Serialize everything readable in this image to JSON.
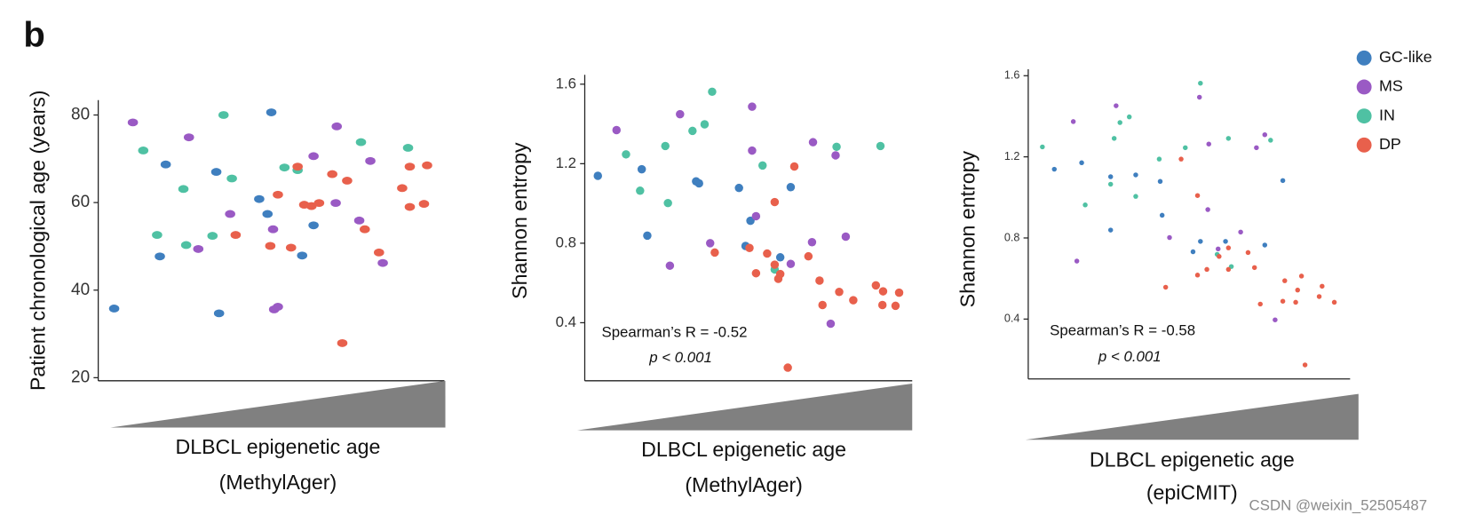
{
  "panel_label": "b",
  "watermark": "CSDN @weixin_52505487",
  "chart_data": [
    {
      "type": "scatter",
      "ylabel": "Patient chronological age (years)",
      "xlabel": [
        "DLBCL epigenetic age",
        "(MethylAger)"
      ],
      "xlim": [
        0,
        100
      ],
      "ylim": [
        19.3,
        83.4
      ],
      "yticks": [
        20,
        40,
        60,
        80
      ],
      "series": [
        {
          "name": "GC-like",
          "color": "#3f7fbf",
          "x": [
            4.6,
            17.8,
            19.5,
            34.1,
            34.9,
            46.5,
            48.9,
            50.0,
            58.9,
            62.2
          ],
          "values": [
            35.8,
            47.7,
            68.7,
            67.0,
            34.7,
            60.8,
            57.4,
            80.6,
            47.9,
            54.8
          ]
        },
        {
          "name": "MS",
          "color": "#9a5ac4",
          "x": [
            10.0,
            26.2,
            28.9,
            38.1,
            50.5,
            50.8,
            51.9,
            62.2,
            68.6,
            68.9,
            75.4,
            78.6,
            82.2
          ],
          "values": [
            78.3,
            74.9,
            49.4,
            57.4,
            53.9,
            35.6,
            36.2,
            70.6,
            59.9,
            77.4,
            55.9,
            69.5,
            46.2
          ]
        },
        {
          "name": "IN",
          "color": "#4fc1a3",
          "x": [
            13.0,
            17.0,
            24.6,
            25.4,
            33.0,
            36.2,
            38.6,
            53.8,
            57.6,
            75.9,
            89.5
          ],
          "values": [
            71.9,
            52.6,
            63.1,
            50.3,
            52.4,
            80.0,
            65.5,
            68.0,
            67.4,
            73.8,
            72.5
          ]
        },
        {
          "name": "DP",
          "color": "#e8604c",
          "x": [
            39.7,
            49.7,
            51.9,
            55.7,
            57.6,
            59.5,
            61.6,
            63.8,
            67.6,
            70.5,
            71.9,
            77.0,
            81.1,
            87.8,
            90.0,
            90.0,
            94.1,
            95.0
          ],
          "values": [
            52.6,
            50.1,
            61.8,
            49.7,
            68.2,
            59.5,
            59.2,
            59.9,
            66.5,
            27.9,
            65.0,
            53.9,
            48.6,
            63.3,
            59.0,
            68.2,
            59.7,
            68.5
          ]
        }
      ]
    },
    {
      "type": "scatter",
      "ylabel": "Shannon entropy",
      "xlabel": [
        "DLBCL epigenetic age",
        "(MethylAger)"
      ],
      "annotation": "Spearman’s R = -0.52",
      "p_value": "p < 0.001",
      "xlim": [
        0,
        100
      ],
      "ylim": [
        0.108,
        1.647
      ],
      "yticks": [
        0.4,
        0.8,
        1.2,
        1.6
      ],
      "series": [
        {
          "name": "GC-like",
          "color": "#3f7fbf",
          "x": [
            4.0,
            17.4,
            19.1,
            34.0,
            34.9,
            47.1,
            49.1,
            50.6,
            59.7,
            62.9
          ],
          "values": [
            1.139,
            1.172,
            0.838,
            1.111,
            1.101,
            1.078,
            0.786,
            0.913,
            0.729,
            1.082
          ]
        },
        {
          "name": "MS",
          "color": "#9a5ac4",
          "x": [
            9.7,
            26.0,
            29.1,
            38.3,
            51.1,
            51.1,
            52.3,
            62.9,
            69.4,
            69.7,
            75.1,
            76.6,
            79.7
          ],
          "values": [
            1.369,
            0.687,
            1.449,
            0.8,
            1.487,
            1.266,
            0.936,
            0.696,
            0.805,
            1.308,
            0.395,
            1.242,
            0.833
          ]
        },
        {
          "name": "IN",
          "color": "#4fc1a3",
          "x": [
            12.6,
            16.9,
            24.6,
            25.4,
            32.9,
            36.6,
            38.9,
            54.3,
            58.0,
            76.9,
            90.3
          ],
          "values": [
            1.247,
            1.064,
            1.289,
            1.002,
            1.365,
            1.398,
            1.562,
            1.191,
            0.668,
            1.285,
            1.289
          ]
        },
        {
          "name": "DP",
          "color": "#e8604c",
          "x": [
            39.7,
            50.3,
            52.3,
            55.7,
            58.0,
            59.1,
            59.7,
            62.0,
            64.0,
            58.0,
            68.3,
            71.7,
            72.6,
            77.7,
            82.0,
            88.9,
            91.1,
            90.9,
            94.9,
            96.0
          ],
          "values": [
            0.753,
            0.776,
            0.649,
            0.748,
            0.692,
            0.621,
            0.645,
            0.174,
            1.186,
            1.007,
            0.734,
            0.612,
            0.489,
            0.555,
            0.513,
            0.588,
            0.558,
            0.489,
            0.485,
            0.551
          ]
        }
      ]
    },
    {
      "type": "scatter",
      "ylabel": "Shannon entropy",
      "xlabel": [
        "DLBCL epigenetic age",
        "(epiCMIT)"
      ],
      "annotation": "Spearman’s R = -0.58",
      "p_value": "p < 0.001",
      "legend": "upper right",
      "xlim": [
        0,
        100
      ],
      "ylim": [
        0.105,
        1.632
      ],
      "yticks": [
        0.4,
        0.8,
        1.2,
        1.6
      ],
      "series": [
        {
          "name": "GC-like",
          "color": "#3f7fbf",
          "x": [
            8.1,
            16.6,
            25.6,
            25.6,
            33.4,
            41.0,
            41.6,
            51.2,
            53.5,
            61.3,
            73.5,
            79.1
          ],
          "values": [
            1.139,
            1.171,
            1.102,
            0.839,
            1.111,
            1.079,
            0.912,
            0.732,
            0.783,
            0.783,
            0.765,
            1.083
          ]
        },
        {
          "name": "MS",
          "color": "#9a5ac4",
          "x": [
            14.0,
            15.1,
            27.3,
            43.9,
            53.2,
            55.8,
            56.1,
            59.0,
            66.0,
            70.9,
            73.5,
            76.7
          ],
          "values": [
            1.374,
            0.686,
            1.452,
            0.802,
            1.494,
            0.94,
            1.263,
            0.746,
            0.829,
            1.245,
            1.309,
            0.396
          ]
        },
        {
          "name": "IN",
          "color": "#4fc1a3",
          "x": [
            4.4,
            17.7,
            25.6,
            26.7,
            28.5,
            31.4,
            33.4,
            40.7,
            48.8,
            53.5,
            58.7,
            63.1,
            62.2,
            75.3
          ],
          "values": [
            1.249,
            0.963,
            1.065,
            1.291,
            1.369,
            1.397,
            1.005,
            1.189,
            1.245,
            1.563,
            0.719,
            0.659,
            1.291,
            1.282
          ]
        },
        {
          "name": "DP",
          "color": "#e8604c",
          "x": [
            47.5,
            42.7,
            52.6,
            52.6,
            55.5,
            59.3,
            62.2,
            62.2,
            68.3,
            70.3,
            72.1,
            79.7,
            79.1,
            83.1,
            83.7,
            84.9,
            91.3,
            90.4,
            95.1,
            86.0
          ],
          "values": [
            1.189,
            0.557,
            1.009,
            0.617,
            0.645,
            0.709,
            0.751,
            0.645,
            0.728,
            0.654,
            0.474,
            0.589,
            0.488,
            0.483,
            0.543,
            0.612,
            0.562,
            0.511,
            0.483,
            0.174
          ]
        }
      ]
    }
  ]
}
